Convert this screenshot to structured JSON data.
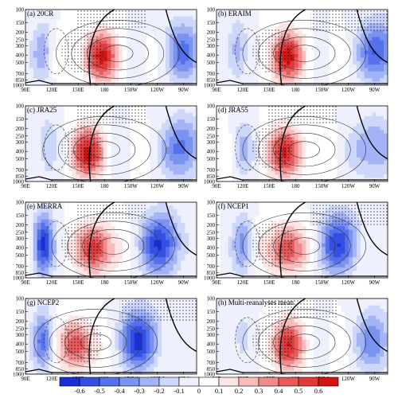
{
  "chart_data": {
    "type": "heatmap",
    "description_kind": "longitude-pressure cross sections, shaded anomalies with overlaid contours and stippling",
    "x_ticks": [
      "90E",
      "120E",
      "150E",
      "180",
      "150W",
      "120W",
      "90W"
    ],
    "x_tick_lons": [
      90,
      120,
      150,
      180,
      210,
      240,
      270
    ],
    "x_range": [
      90,
      285
    ],
    "y_ticks": [
      "100",
      "150",
      "200",
      "250",
      "300",
      "400",
      "500",
      "700",
      "850",
      "1000"
    ],
    "y_tick_values": [
      100,
      150,
      200,
      250,
      300,
      400,
      500,
      700,
      850,
      1000
    ],
    "y_range": [
      100,
      1000
    ],
    "y_scale": "log",
    "colorbar": {
      "ticks": [
        "-0.6",
        "-0.5",
        "-0.4",
        "-0.3",
        "-0.2",
        "-0.1",
        "0",
        "0.1",
        "0.2",
        "0.3",
        "0.4",
        "0.5",
        "0.6"
      ],
      "colors": [
        "#1a2fd6",
        "#3450e0",
        "#5470ea",
        "#7a93f0",
        "#a3b3f5",
        "#cdd7fa",
        "#eef1fd",
        "#ffffff",
        "#fde5e5",
        "#f8bcbc",
        "#f08b8b",
        "#e85a5a",
        "#e03a3a",
        "#d41414"
      ]
    },
    "panels": [
      {
        "title": "(a) 20CR",
        "pos_center": 175,
        "pos_amp": 0.6,
        "neg_center": 270,
        "neg_amp": 0.4,
        "neg2_center": 110,
        "neg2_amp": 0.25,
        "stipple": "top-left"
      },
      {
        "title": "(b) ERAIM",
        "pos_center": 170,
        "pos_amp": 0.6,
        "neg_center": 275,
        "neg_amp": 0.5,
        "neg2_center": 115,
        "neg2_amp": 0.3,
        "stipple": "top-right"
      },
      {
        "title": "(c) JRA25",
        "pos_center": 160,
        "pos_amp": 0.6,
        "neg_center": 270,
        "neg_amp": 0.45,
        "neg2_center": 115,
        "neg2_amp": 0.25,
        "stipple": "top-left"
      },
      {
        "title": "(d) JRA55",
        "pos_center": 170,
        "pos_amp": 0.6,
        "neg_center": 270,
        "neg_amp": 0.35,
        "neg2_center": 120,
        "neg2_amp": 0.2,
        "stipple": "top-left"
      },
      {
        "title": "(e) MERRA",
        "pos_center": 170,
        "pos_amp": 0.6,
        "neg_center": 245,
        "neg_amp": 0.6,
        "neg2_center": 110,
        "neg2_amp": 0.6,
        "stipple": "top-left"
      },
      {
        "title": "(f) NCEP1",
        "pos_center": 170,
        "pos_amp": 0.55,
        "neg_center": 230,
        "neg_amp": 0.55,
        "neg2_center": 120,
        "neg2_amp": 0.3,
        "stipple": "top-right"
      },
      {
        "title": "(g) NCEP2",
        "pos_center": 150,
        "pos_amp": 0.5,
        "neg_center": 220,
        "neg_amp": 0.6,
        "neg2_center": 110,
        "neg2_amp": 0.4,
        "stipple": "top-right"
      },
      {
        "title": "(h) Multi-reanalyses mean",
        "pos_center": 170,
        "pos_amp": 0.55,
        "neg_center": 270,
        "neg_amp": 0.35,
        "neg2_center": 120,
        "neg2_amp": 0.2,
        "stipple": "top-left"
      }
    ]
  }
}
